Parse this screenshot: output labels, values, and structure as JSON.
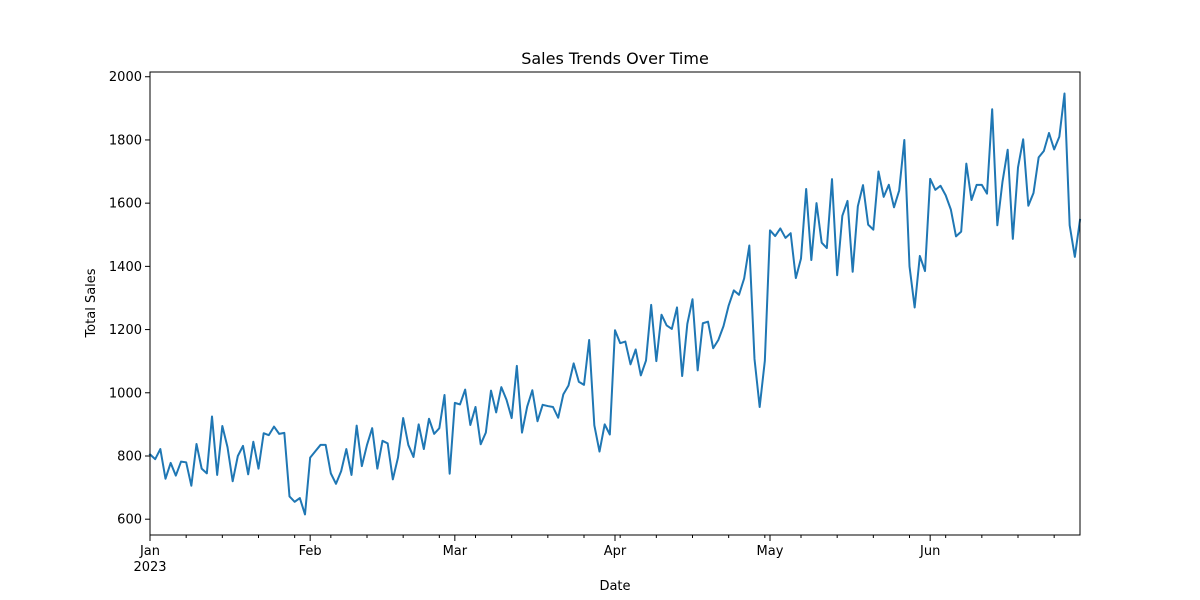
{
  "chart_data": {
    "type": "line",
    "title": "Sales Trends Over Time",
    "xlabel": "Date",
    "ylabel": "Total Sales",
    "year_label": "2023",
    "grid": false,
    "legend": "none",
    "series_color": "#1f77b4",
    "x_range": [
      "2023-01-01",
      "2023-06-30"
    ],
    "ylim": [
      550,
      2015
    ],
    "y_ticks": [
      600,
      800,
      1000,
      1200,
      1400,
      1600,
      1800,
      2000
    ],
    "x_major_ticks": [
      {
        "date": "2023-01-01",
        "label": "Jan"
      },
      {
        "date": "2023-02-01",
        "label": "Feb"
      },
      {
        "date": "2023-03-01",
        "label": "Mar"
      },
      {
        "date": "2023-04-01",
        "label": "Apr"
      },
      {
        "date": "2023-05-01",
        "label": "May"
      },
      {
        "date": "2023-06-01",
        "label": "Jun"
      }
    ],
    "x_minor_ticks": [
      "2023-01-08",
      "2023-01-15",
      "2023-01-22",
      "2023-01-29",
      "2023-02-05",
      "2023-02-12",
      "2023-02-19",
      "2023-02-26",
      "2023-03-05",
      "2023-03-12",
      "2023-03-19",
      "2023-03-26",
      "2023-04-02",
      "2023-04-09",
      "2023-04-16",
      "2023-04-23",
      "2023-04-30",
      "2023-05-07",
      "2023-05-14",
      "2023-05-21",
      "2023-05-28",
      "2023-06-04",
      "2023-06-11",
      "2023-06-18",
      "2023-06-25"
    ],
    "series": [
      {
        "start_date": "2023-01-01",
        "values": [
          805,
          790,
          822,
          728,
          778,
          738,
          782,
          780,
          706,
          838,
          760,
          745,
          925,
          740,
          895,
          828,
          720,
          800,
          832,
          742,
          845,
          760,
          872,
          866,
          893,
          870,
          873,
          672,
          655,
          667,
          615,
          795,
          815,
          835,
          835,
          745,
          712,
          752,
          822,
          740,
          896,
          768,
          835,
          888,
          760,
          848,
          840,
          726,
          795,
          920,
          835,
          797,
          900,
          822,
          918,
          870,
          888,
          993,
          744,
          968,
          963,
          1010,
          898,
          955,
          837,
          874,
          1007,
          938,
          1018,
          978,
          920,
          1085,
          874,
          956,
          1008,
          910,
          962,
          958,
          955,
          921,
          995,
          1023,
          1093,
          1035,
          1025,
          1167,
          897,
          814,
          900,
          868,
          1198,
          1157,
          1162,
          1090,
          1137,
          1055,
          1102,
          1278,
          1100,
          1247,
          1213,
          1202,
          1270,
          1053,
          1218,
          1296,
          1071,
          1220,
          1225,
          1141,
          1167,
          1211,
          1276,
          1324,
          1310,
          1362,
          1466,
          1107,
          955,
          1101,
          1514,
          1496,
          1520,
          1490,
          1505,
          1363,
          1425,
          1645,
          1420,
          1600,
          1475,
          1458,
          1676,
          1372,
          1560,
          1607,
          1383,
          1590,
          1657,
          1532,
          1516,
          1700,
          1620,
          1658,
          1587,
          1640,
          1800,
          1400,
          1270,
          1433,
          1385,
          1677,
          1642,
          1655,
          1625,
          1580,
          1495,
          1510,
          1725,
          1610,
          1658,
          1658,
          1630,
          1897,
          1530,
          1668,
          1769,
          1487,
          1713,
          1802,
          1592,
          1632,
          1745,
          1765,
          1822,
          1770,
          1810,
          1947,
          1530,
          1430,
          1547
        ]
      }
    ]
  }
}
